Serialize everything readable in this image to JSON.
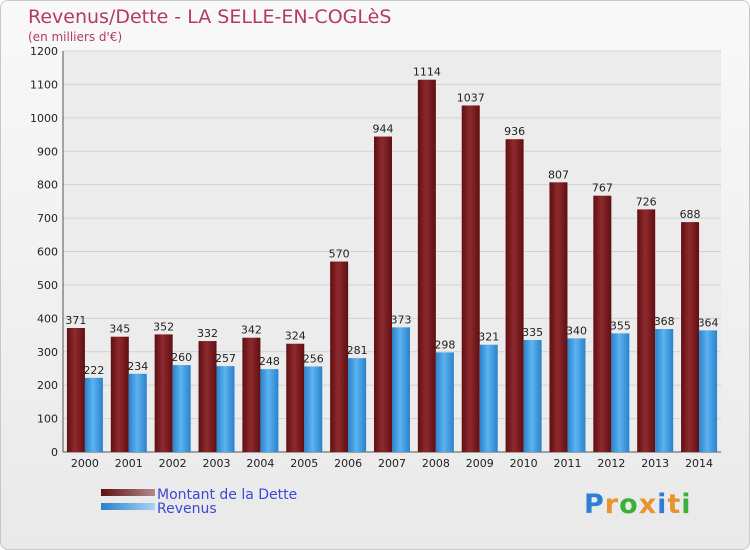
{
  "title": "Revenus/Dette - LA SELLE-EN-COGLèS",
  "subtitle": "(en milliers d'€)",
  "chart_data": {
    "type": "bar",
    "title": "Revenus/Dette - LA SELLE-EN-COGLèS",
    "ylabel": "(en milliers d'€)",
    "xlabel": "",
    "categories": [
      "2000",
      "2001",
      "2002",
      "2003",
      "2004",
      "2005",
      "2006",
      "2007",
      "2008",
      "2009",
      "2010",
      "2011",
      "2012",
      "2013",
      "2014"
    ],
    "series": [
      {
        "name": "Montant de la Dette",
        "color": "#7a1a1d",
        "values": [
          371,
          345,
          352,
          332,
          342,
          324,
          570,
          944,
          1114,
          1037,
          936,
          807,
          767,
          726,
          688
        ]
      },
      {
        "name": "Revenus",
        "color": "#3f9be0",
        "values": [
          222,
          234,
          260,
          257,
          248,
          256,
          281,
          373,
          298,
          321,
          335,
          340,
          355,
          368,
          364
        ]
      }
    ],
    "ylim": [
      0,
      1200
    ],
    "yticks": [
      0,
      100,
      200,
      300,
      400,
      500,
      600,
      700,
      800,
      900,
      1000,
      1100,
      1200
    ],
    "grid": true,
    "legend_position": "bottom-left"
  },
  "legend": [
    "Montant de la Dette",
    "Revenus"
  ],
  "logo": {
    "text": "Proxiti",
    "letters": [
      "P",
      "r",
      "o",
      "x",
      "i",
      "t",
      "i"
    ],
    "colors": [
      "#2d7fd6",
      "#e8932b",
      "#3aaf3a",
      "#e8932b",
      "#2d7fd6",
      "#e8932b",
      "#3aaf3a"
    ]
  }
}
